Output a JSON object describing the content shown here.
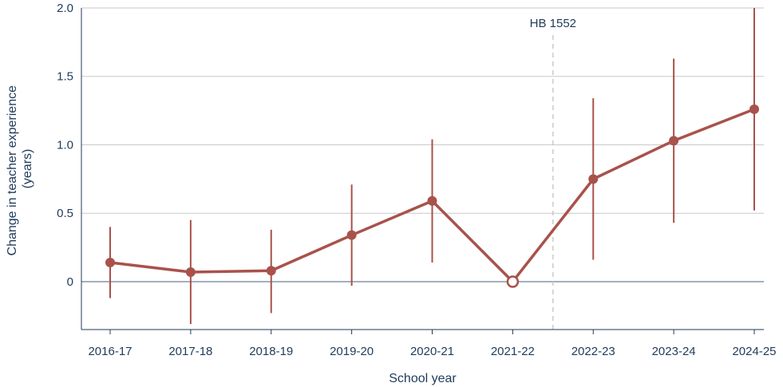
{
  "chart_data": {
    "type": "line",
    "title": "",
    "xlabel": "School year",
    "ylabel_lines": [
      "Change in teacher experience",
      "(years)"
    ],
    "categories": [
      "2016-17",
      "2017-18",
      "2018-19",
      "2019-20",
      "2020-21",
      "2021-22",
      "2022-23",
      "2023-24",
      "2024-25"
    ],
    "values": [
      0.14,
      0.07,
      0.08,
      0.34,
      0.59,
      0.0,
      0.75,
      1.03,
      1.26
    ],
    "ci_lower": [
      -0.12,
      -0.31,
      -0.23,
      -0.03,
      0.14,
      null,
      0.16,
      0.43,
      0.52
    ],
    "ci_upper": [
      0.4,
      0.45,
      0.38,
      0.71,
      1.04,
      null,
      1.34,
      1.63,
      2.0
    ],
    "reference_category": "2021-22",
    "ylim": [
      -0.35,
      2.0
    ],
    "yticks": [
      0,
      0.5,
      1.0,
      1.5,
      2.0
    ],
    "ytick_labels": [
      "0",
      "0.5",
      "1.0",
      "1.5",
      "2.0"
    ],
    "grid": "horizontal",
    "annotation": {
      "label": "HB 1552",
      "between": [
        "2021-22",
        "2022-23"
      ],
      "style": "dashed vertical line"
    },
    "colors": {
      "series": "#a8524b",
      "grid": "#c9c9c9",
      "zero_line": "#8596a6",
      "axis": "#1f3a5a",
      "annotation_line": "#bfbfbf",
      "text": "#1f3a5a"
    }
  }
}
